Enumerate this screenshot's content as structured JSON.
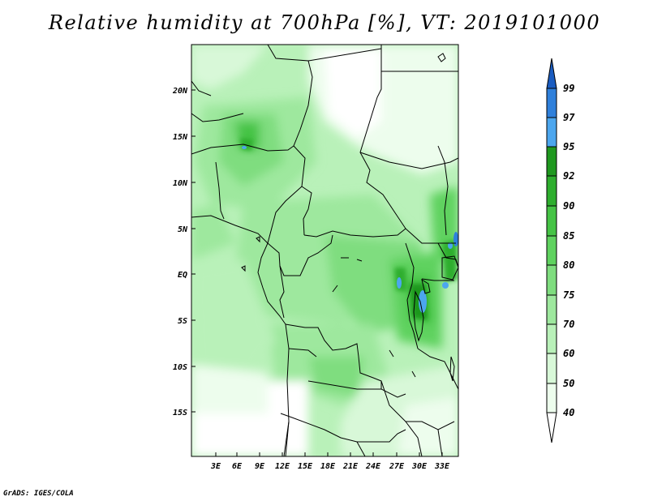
{
  "title": "Relative humidity at 700hPa [%], VT: 2019101000",
  "credit": "GrADS: IGES/COLA",
  "map": {
    "lon_ticks": [
      "3E",
      "6E",
      "9E",
      "12E",
      "15E",
      "18E",
      "21E",
      "24E",
      "27E",
      "30E",
      "33E"
    ],
    "lat_ticks": [
      "20N",
      "15N",
      "10N",
      "5N",
      "EQ",
      "5S",
      "10S",
      "15S"
    ],
    "lon_range": [
      0,
      35
    ],
    "lat_range": [
      -20,
      25
    ]
  },
  "colorbar": {
    "levels": [
      "99",
      "97",
      "95",
      "92",
      "90",
      "85",
      "80",
      "75",
      "70",
      "60",
      "50",
      "40"
    ],
    "colors": {
      "lt40": "#ffffff",
      "40-50": "#edfded",
      "50-60": "#d8f8d8",
      "60-70": "#b9f1b9",
      "70-75": "#9ee89e",
      "75-80": "#7fdd7f",
      "80-85": "#5fd25f",
      "85-90": "#45c345",
      "90-92": "#2eae2e",
      "92-95": "#1f981f",
      "95-97": "#4ca6ee",
      "97-99": "#2f80db",
      "gt99": "#1a5cc0"
    }
  }
}
